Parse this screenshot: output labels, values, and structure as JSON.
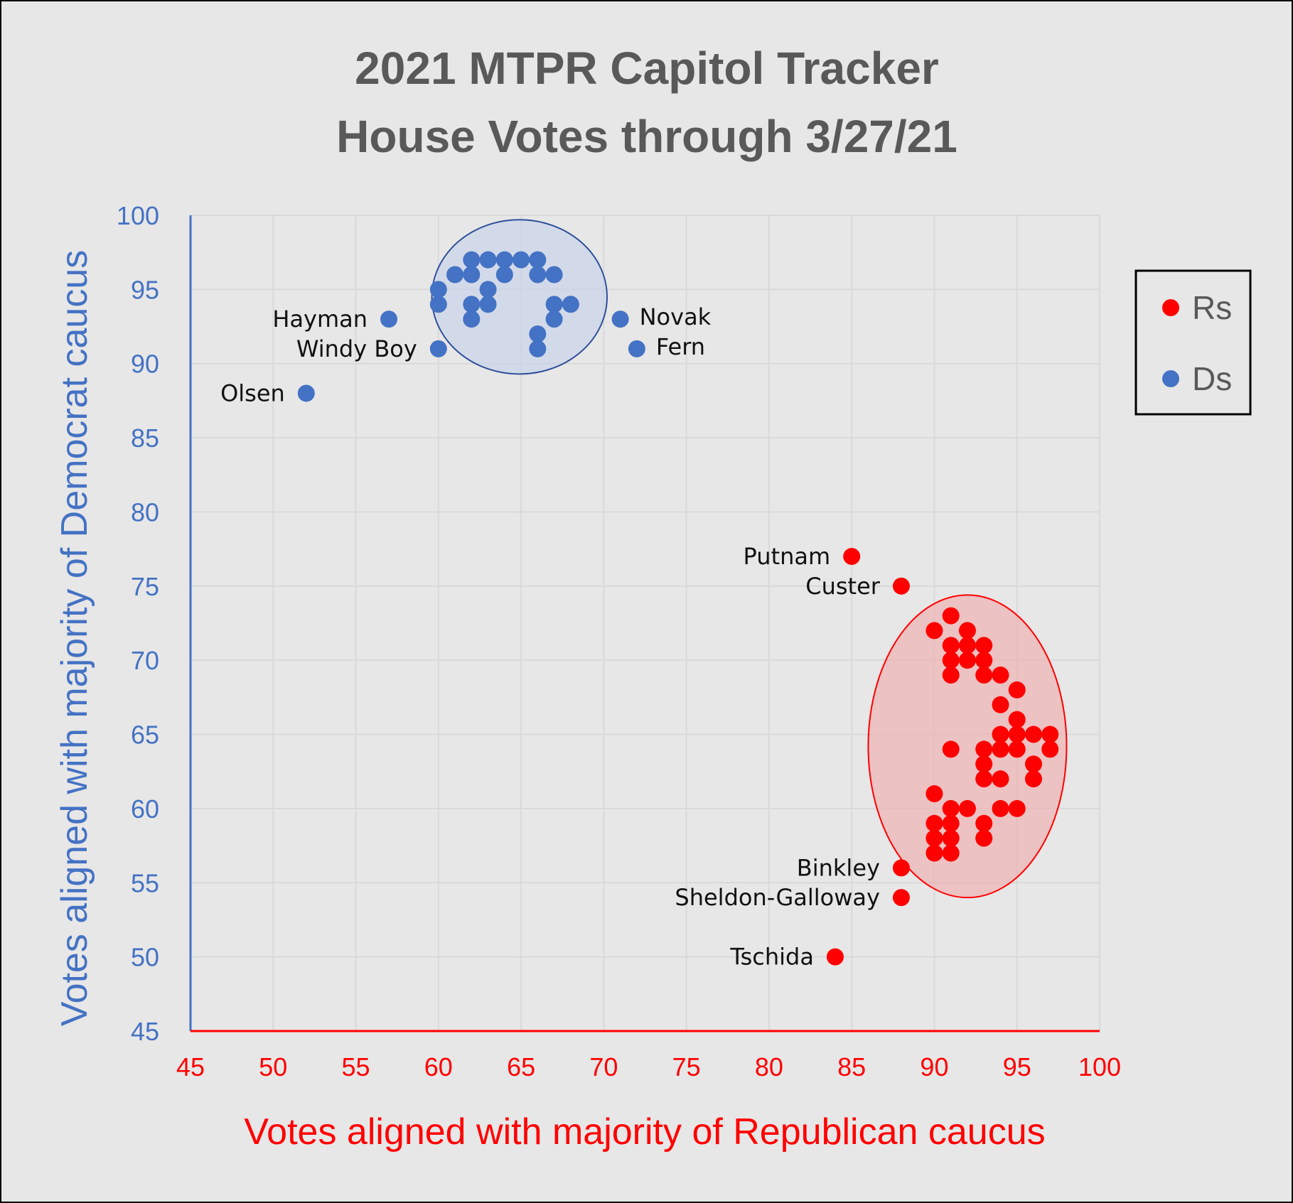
{
  "chart_data": {
    "type": "scatter",
    "title": [
      "2021 MTPR Capitol Tracker",
      "House Votes through 3/27/21"
    ],
    "xlabel": "Votes aligned with majority of Republican caucus",
    "ylabel": "Votes aligned with majority of Democrat caucus",
    "xlim": [
      45,
      100
    ],
    "ylim": [
      45,
      100
    ],
    "xticks": [
      "45",
      "50",
      "55",
      "60",
      "65",
      "70",
      "75",
      "80",
      "85",
      "90",
      "95",
      "100"
    ],
    "yticks": [
      "45",
      "50",
      "55",
      "60",
      "65",
      "70",
      "75",
      "80",
      "85",
      "90",
      "95",
      "100"
    ],
    "grid": true,
    "legend_position": "right",
    "colors": {
      "Rs": "#ff0000",
      "Ds": "#4472c4",
      "x_axis": "#ff0000",
      "y_axis": "#4472c4"
    },
    "series": [
      {
        "name": "Rs",
        "points": [
          [
            85,
            77
          ],
          [
            88,
            75
          ],
          [
            91,
            73
          ],
          [
            90,
            72
          ],
          [
            92,
            72
          ],
          [
            91,
            71
          ],
          [
            92,
            71
          ],
          [
            93,
            71
          ],
          [
            91,
            70
          ],
          [
            92,
            70
          ],
          [
            93,
            70
          ],
          [
            91,
            69
          ],
          [
            93,
            69
          ],
          [
            94,
            69
          ],
          [
            95,
            68
          ],
          [
            94,
            67
          ],
          [
            95,
            66
          ],
          [
            94,
            65
          ],
          [
            95,
            65
          ],
          [
            96,
            65
          ],
          [
            97,
            65
          ],
          [
            91,
            64
          ],
          [
            93,
            64
          ],
          [
            94,
            64
          ],
          [
            95,
            64
          ],
          [
            97,
            64
          ],
          [
            93,
            63
          ],
          [
            96,
            63
          ],
          [
            93,
            62
          ],
          [
            94,
            62
          ],
          [
            96,
            62
          ],
          [
            90,
            61
          ],
          [
            91,
            60
          ],
          [
            92,
            60
          ],
          [
            94,
            60
          ],
          [
            95,
            60
          ],
          [
            90,
            59
          ],
          [
            91,
            59
          ],
          [
            93,
            59
          ],
          [
            90,
            58
          ],
          [
            91,
            58
          ],
          [
            93,
            58
          ],
          [
            90,
            57
          ],
          [
            91,
            57
          ],
          [
            88,
            56
          ],
          [
            88,
            54
          ],
          [
            84,
            50
          ]
        ]
      },
      {
        "name": "Ds",
        "points": [
          [
            62,
            97
          ],
          [
            63,
            97
          ],
          [
            64,
            97
          ],
          [
            65,
            97
          ],
          [
            66,
            97
          ],
          [
            61,
            96
          ],
          [
            62,
            96
          ],
          [
            64,
            96
          ],
          [
            66,
            96
          ],
          [
            67,
            96
          ],
          [
            60,
            95
          ],
          [
            63,
            95
          ],
          [
            60,
            94
          ],
          [
            62,
            94
          ],
          [
            63,
            94
          ],
          [
            67,
            94
          ],
          [
            68,
            94
          ],
          [
            62,
            93
          ],
          [
            67,
            93
          ],
          [
            66,
            92
          ],
          [
            66,
            91
          ],
          [
            57,
            93
          ],
          [
            60,
            91
          ],
          [
            52,
            88
          ],
          [
            71,
            93
          ],
          [
            72,
            91
          ]
        ]
      }
    ],
    "ellipses": [
      {
        "series": "Ds",
        "cx": 64.9,
        "cy": 94.5,
        "rx": 5.3,
        "ry": 5.2
      },
      {
        "series": "Rs",
        "cx": 92,
        "cy": 64.2,
        "rx": 6,
        "ry": 10.2
      }
    ],
    "annotations": [
      {
        "text": "Hayman",
        "x": 57,
        "y": 93,
        "side": "left"
      },
      {
        "text": "Windy Boy",
        "x": 60,
        "y": 91,
        "side": "left"
      },
      {
        "text": "Olsen",
        "x": 52,
        "y": 88,
        "side": "left"
      },
      {
        "text": "Novak",
        "x": 71,
        "y": 93,
        "side": "right"
      },
      {
        "text": "Fern",
        "x": 72,
        "y": 91,
        "side": "right"
      },
      {
        "text": "Putnam",
        "x": 85,
        "y": 77,
        "side": "left"
      },
      {
        "text": "Custer",
        "x": 88,
        "y": 75,
        "side": "left"
      },
      {
        "text": "Binkley",
        "x": 88,
        "y": 56,
        "side": "left"
      },
      {
        "text": "Sheldon-Galloway",
        "x": 88,
        "y": 54,
        "side": "left"
      },
      {
        "text": "Tschida",
        "x": 84,
        "y": 50,
        "side": "left"
      }
    ]
  }
}
